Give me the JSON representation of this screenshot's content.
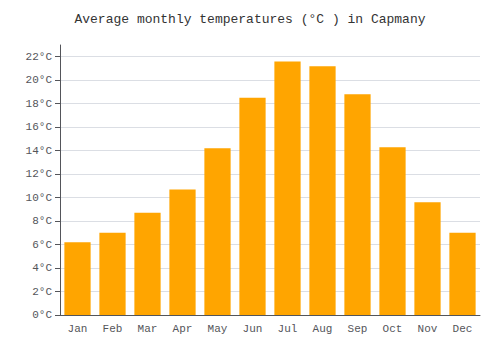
{
  "chart_data": {
    "type": "bar",
    "title": "Average monthly temperatures (°C ) in Capmany",
    "categories": [
      "Jan",
      "Feb",
      "Mar",
      "Apr",
      "May",
      "Jun",
      "Jul",
      "Aug",
      "Sep",
      "Oct",
      "Nov",
      "Dec"
    ],
    "values": [
      6.2,
      7.0,
      8.7,
      10.7,
      14.2,
      18.5,
      21.6,
      21.2,
      18.8,
      14.3,
      9.6,
      7.0
    ],
    "color": "#FFA500",
    "ylim": [
      0,
      23
    ],
    "yticks": [
      {
        "value": 0,
        "label": "0°C"
      },
      {
        "value": 2,
        "label": "2°C"
      },
      {
        "value": 4,
        "label": "4°C"
      },
      {
        "value": 6,
        "label": "6°C"
      },
      {
        "value": 8,
        "label": "8°C"
      },
      {
        "value": 10,
        "label": "10°C"
      },
      {
        "value": 12,
        "label": "12°C"
      },
      {
        "value": 14,
        "label": "14°C"
      },
      {
        "value": 16,
        "label": "16°C"
      },
      {
        "value": 18,
        "label": "18°C"
      },
      {
        "value": 20,
        "label": "20°C"
      },
      {
        "value": 22,
        "label": "22°C"
      }
    ],
    "grid": true
  }
}
